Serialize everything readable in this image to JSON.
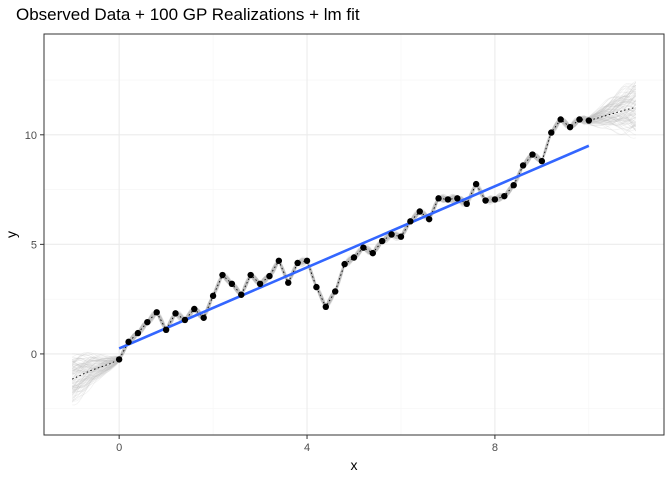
{
  "chart_data": {
    "type": "line",
    "title": "Observed Data + 100 GP Realizations + lm fit",
    "xlabel": "x",
    "ylabel": "y",
    "xlim": [
      -1.6,
      11.6
    ],
    "ylim": [
      -3.7,
      14.6
    ],
    "x_ticks": [
      0,
      4,
      8
    ],
    "y_ticks": [
      0,
      5,
      10
    ],
    "grid": true,
    "legend": "none",
    "colors": {
      "points": "#000000",
      "lm_fit": "#3366ff",
      "gp_realizations": "#bdbdbd",
      "mean_line": "#000000",
      "grid_major": "#ebebeb",
      "grid_minor": "#f5f5f5",
      "panel_border": "#333333"
    },
    "series": [
      {
        "kind": "observed_points",
        "x": [
          0.0,
          0.2,
          0.4,
          0.6,
          0.8,
          1.0,
          1.2,
          1.4,
          1.6,
          1.8,
          2.0,
          2.2,
          2.4,
          2.6,
          2.8,
          3.0,
          3.2,
          3.4,
          3.6,
          3.8,
          4.0,
          4.2,
          4.4,
          4.6,
          4.8,
          5.0,
          5.2,
          5.4,
          5.6,
          5.8,
          6.0,
          6.2,
          6.4,
          6.6,
          6.8,
          7.0,
          7.2,
          7.4,
          7.6,
          7.8,
          8.0,
          8.2,
          8.4,
          8.6,
          8.8,
          9.0,
          9.2,
          9.4,
          9.6,
          9.8,
          10.0
        ],
        "y": [
          -0.25,
          0.55,
          0.95,
          1.45,
          1.9,
          1.1,
          1.85,
          1.55,
          2.05,
          1.65,
          2.65,
          3.6,
          3.2,
          2.7,
          3.6,
          3.2,
          3.55,
          4.25,
          3.25,
          4.15,
          4.25,
          3.05,
          2.15,
          2.85,
          4.1,
          4.4,
          4.85,
          4.6,
          5.15,
          5.45,
          5.35,
          6.05,
          6.5,
          6.15,
          7.1,
          7.05,
          7.1,
          6.85,
          7.75,
          7.0,
          7.05,
          7.2,
          7.7,
          8.6,
          9.1,
          8.8,
          10.1,
          10.7,
          10.35,
          10.7,
          10.65
        ]
      },
      {
        "kind": "mean_extrapolation",
        "x": [
          -1.0,
          -0.6,
          -0.2,
          0.0,
          10.0,
          10.4,
          10.8,
          11.0
        ],
        "y": [
          -1.15,
          -0.75,
          -0.45,
          -0.25,
          10.65,
          10.9,
          11.15,
          11.25
        ]
      },
      {
        "kind": "lm_fit",
        "x": [
          0.0,
          10.0
        ],
        "y": [
          0.25,
          9.5
        ]
      }
    ],
    "gp_realizations_count": 100
  }
}
